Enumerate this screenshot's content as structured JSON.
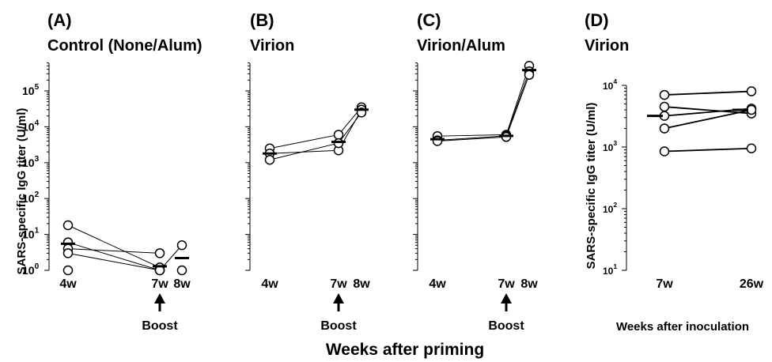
{
  "chart_data": [
    {
      "type": "scatter",
      "panel": "(A)",
      "title": "Control (None/Alum)",
      "ylabel": "SARS-specific IgG titer (U/ml)",
      "yscale": "log",
      "ylim": [
        1,
        1000000
      ],
      "yticks": [
        1,
        10,
        100,
        1000,
        10000,
        100000
      ],
      "yticklabels": [
        [
          "10",
          "0"
        ],
        [
          "10",
          "1"
        ],
        [
          "10",
          "2"
        ],
        [
          "10",
          "3"
        ],
        [
          "10",
          "4"
        ],
        [
          "10",
          "5"
        ]
      ],
      "x": [
        "4w",
        "7w",
        "8w"
      ],
      "subjects": [
        {
          "values": [
            18,
            1.2,
            null
          ]
        },
        {
          "values": [
            6,
            1,
            null
          ]
        },
        {
          "values": [
            4,
            3,
            null
          ]
        },
        {
          "values": [
            3,
            1,
            null
          ]
        },
        {
          "values": [
            1,
            null,
            null
          ]
        },
        {
          "values": [
            null,
            1,
            5
          ]
        },
        {
          "values": [
            null,
            null,
            1
          ]
        }
      ],
      "geomean": [
        5.5,
        1.3,
        2.2
      ],
      "annotation": "Boost",
      "annotation_at": "7w"
    },
    {
      "type": "scatter",
      "panel": "(B)",
      "title": "Virion",
      "yscale": "log",
      "ylim": [
        1,
        1000000
      ],
      "x": [
        "4w",
        "7w",
        "8w"
      ],
      "subjects": [
        {
          "values": [
            2500,
            6000,
            35000
          ]
        },
        {
          "values": [
            1800,
            2200,
            30000
          ]
        },
        {
          "values": [
            1200,
            3500,
            25000
          ]
        }
      ],
      "geomean": [
        1800,
        3800,
        30000
      ],
      "annotation": "Boost",
      "annotation_at": "7w"
    },
    {
      "type": "scatter",
      "panel": "(C)",
      "title": "Virion/Alum",
      "yscale": "log",
      "ylim": [
        1,
        1000000
      ],
      "x": [
        "4w",
        "7w",
        "8w"
      ],
      "subjects": [
        {
          "values": [
            5500,
            6000,
            500000
          ]
        },
        {
          "values": [
            4200,
            5600,
            350000
          ]
        },
        {
          "values": [
            4000,
            5200,
            280000
          ]
        }
      ],
      "geomean": [
        4500,
        5600,
        380000
      ],
      "annotation": "Boost",
      "annotation_at": "7w"
    },
    {
      "type": "scatter",
      "panel": "(D)",
      "title": "Virion",
      "ylabel": "SARS-specific IgG titer (U/ml)",
      "xlabel": "Weeks after inoculation",
      "yscale": "log",
      "ylim": [
        10,
        10000
      ],
      "yticks": [
        10,
        100,
        1000,
        10000
      ],
      "yticklabels": [
        [
          "10",
          "1"
        ],
        [
          "10",
          "2"
        ],
        [
          "10",
          "3"
        ],
        [
          "10",
          "4"
        ]
      ],
      "x": [
        "7w",
        "26w"
      ],
      "subjects": [
        {
          "values": [
            7000,
            8000
          ]
        },
        {
          "values": [
            4500,
            3500
          ]
        },
        {
          "values": [
            3200,
            4200
          ]
        },
        {
          "values": [
            2000,
            4000
          ]
        },
        {
          "values": [
            850,
            950
          ]
        }
      ],
      "geomean": [
        3200,
        4000
      ]
    }
  ],
  "shared_xlabel": "Weeks after priming"
}
